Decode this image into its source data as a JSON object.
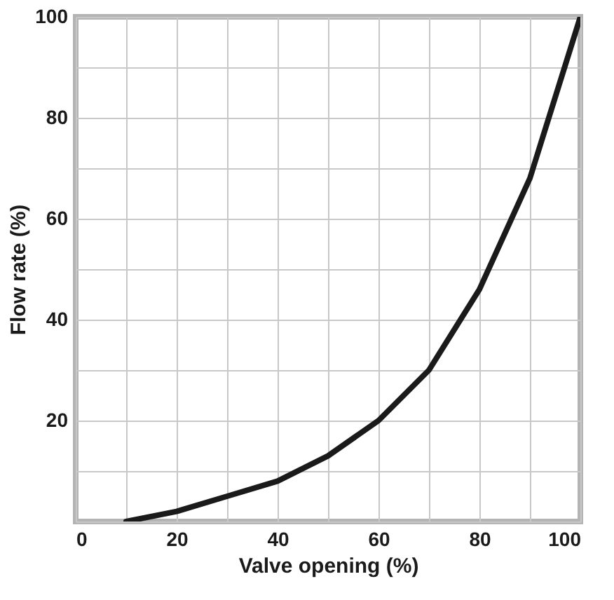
{
  "chart_data": {
    "type": "line",
    "xlabel": "Valve opening (%)",
    "ylabel": "Flow rate (%)",
    "x": [
      10,
      20,
      30,
      40,
      50,
      60,
      70,
      80,
      90,
      100
    ],
    "series": [
      {
        "color": "#1a1a1a",
        "values": [
          0,
          2,
          5,
          8,
          13,
          20,
          30,
          46,
          68,
          100
        ]
      }
    ],
    "xlim": [
      0,
      100
    ],
    "ylim": [
      0,
      100
    ],
    "xticks": [
      0,
      {
        "value": 10,
        "label": null
      },
      20,
      {
        "value": 30,
        "label": null
      },
      40,
      {
        "value": 50,
        "label": null
      },
      60,
      {
        "value": 70,
        "label": null
      },
      80,
      {
        "value": 90,
        "label": null
      },
      100
    ],
    "yticks": [
      {
        "value": 0,
        "label": null
      },
      {
        "value": 10,
        "label": null
      },
      20,
      {
        "value": 30,
        "label": null
      },
      40,
      {
        "value": 50,
        "label": null
      },
      60,
      {
        "value": 70,
        "label": null
      },
      80,
      {
        "value": 90,
        "label": null
      },
      100
    ],
    "grid": true,
    "marker": "none",
    "line_style": "solid"
  }
}
